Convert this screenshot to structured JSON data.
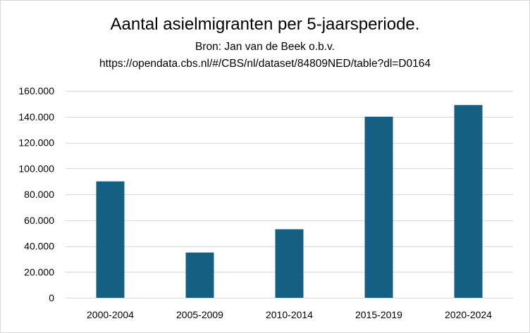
{
  "chart_data": {
    "type": "bar",
    "title": "Aantal asielmigranten per 5-jaarsperiode.",
    "subtitle": [
      "Bron: Jan van de Beek o.b.v.",
      "https://opendata.cbs.nl/#/CBS/nl/dataset/84809NED/table?dl=D0164"
    ],
    "categories": [
      "2000-2004",
      "2005-2009",
      "2010-2014",
      "2015-2019",
      "2020-2024"
    ],
    "values": [
      90000,
      35000,
      53000,
      140000,
      149000
    ],
    "ylim": [
      0,
      160000
    ],
    "yticks": [
      0,
      20000,
      40000,
      60000,
      80000,
      100000,
      120000,
      140000,
      160000
    ],
    "ytick_labels": [
      "0",
      "20.000",
      "40.000",
      "60.000",
      "80.000",
      "100.000",
      "120.000",
      "140.000",
      "160.000"
    ],
    "grid": true,
    "legend": "none",
    "colors": {
      "bar": "#156082",
      "grid": "#d9d9d9",
      "axis": "#d9d9d9"
    }
  }
}
